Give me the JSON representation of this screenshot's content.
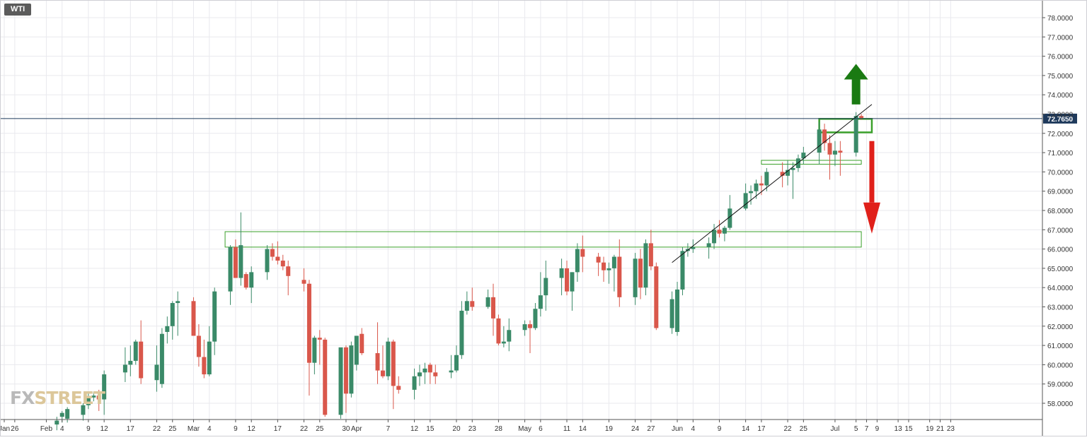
{
  "symbol": "WTI",
  "watermark": {
    "part1": "FX",
    "part2": "STREET"
  },
  "colors": {
    "up": "#3a8a68",
    "down": "#d9574b",
    "grid": "#e9e9ee",
    "axis": "#555555",
    "current_line": "#1f3a5c",
    "zone": "#3aa02a",
    "arrow_up": "#1a7a12",
    "arrow_down": "#e0201a"
  },
  "chart_data": {
    "type": "candlestick",
    "title": "",
    "xlabel": "",
    "ylabel": "",
    "ylim": [
      57.2,
      78.5
    ],
    "y_ticks": [
      "58.0000",
      "59.0000",
      "60.0000",
      "61.0000",
      "62.0000",
      "63.0000",
      "64.0000",
      "65.0000",
      "66.0000",
      "67.0000",
      "68.0000",
      "69.0000",
      "70.0000",
      "71.0000",
      "72.0000",
      "73.0000",
      "74.0000",
      "75.0000",
      "76.0000",
      "77.0000",
      "78.0000"
    ],
    "x_ticks": [
      {
        "label": "Jan",
        "date": "2021-01-24"
      },
      {
        "label": "26",
        "date": "2021-01-26"
      },
      {
        "label": "Feb",
        "date": "2021-02-01"
      },
      {
        "label": "4",
        "date": "2021-02-04"
      },
      {
        "label": "9",
        "date": "2021-02-09"
      },
      {
        "label": "12",
        "date": "2021-02-12"
      },
      {
        "label": "17",
        "date": "2021-02-17"
      },
      {
        "label": "22",
        "date": "2021-02-22"
      },
      {
        "label": "25",
        "date": "2021-02-25"
      },
      {
        "label": "Mar",
        "date": "2021-03-01"
      },
      {
        "label": "4",
        "date": "2021-03-04"
      },
      {
        "label": "9",
        "date": "2021-03-09"
      },
      {
        "label": "12",
        "date": "2021-03-12"
      },
      {
        "label": "17",
        "date": "2021-03-17"
      },
      {
        "label": "22",
        "date": "2021-03-22"
      },
      {
        "label": "25",
        "date": "2021-03-25"
      },
      {
        "label": "30",
        "date": "2021-03-30"
      },
      {
        "label": "Apr",
        "date": "2021-04-01"
      },
      {
        "label": "7",
        "date": "2021-04-07"
      },
      {
        "label": "12",
        "date": "2021-04-12"
      },
      {
        "label": "15",
        "date": "2021-04-15"
      },
      {
        "label": "20",
        "date": "2021-04-20"
      },
      {
        "label": "23",
        "date": "2021-04-23"
      },
      {
        "label": "28",
        "date": "2021-04-28"
      },
      {
        "label": "May",
        "date": "2021-05-03"
      },
      {
        "label": "6",
        "date": "2021-05-06"
      },
      {
        "label": "11",
        "date": "2021-05-11"
      },
      {
        "label": "14",
        "date": "2021-05-14"
      },
      {
        "label": "19",
        "date": "2021-05-19"
      },
      {
        "label": "24",
        "date": "2021-05-24"
      },
      {
        "label": "27",
        "date": "2021-05-27"
      },
      {
        "label": "Jun",
        "date": "2021-06-01"
      },
      {
        "label": "4",
        "date": "2021-06-04"
      },
      {
        "label": "9",
        "date": "2021-06-09"
      },
      {
        "label": "14",
        "date": "2021-06-14"
      },
      {
        "label": "17",
        "date": "2021-06-17"
      },
      {
        "label": "22",
        "date": "2021-06-22"
      },
      {
        "label": "25",
        "date": "2021-06-25"
      },
      {
        "label": "Jul",
        "date": "2021-07-01"
      },
      {
        "label": "5",
        "date": "2021-07-05"
      },
      {
        "label": "7",
        "date": "2021-07-07"
      },
      {
        "label": "9",
        "date": "2021-07-09"
      },
      {
        "label": "13",
        "date": "2021-07-13"
      },
      {
        "label": "15",
        "date": "2021-07-15"
      },
      {
        "label": "19",
        "date": "2021-07-19"
      },
      {
        "label": "21",
        "date": "2021-07-21"
      },
      {
        "label": "23",
        "date": "2021-07-23"
      }
    ],
    "candles": [
      {
        "date": "2021-02-03",
        "o": 56.9,
        "h": 57.3,
        "l": 56.6,
        "c": 57.1
      },
      {
        "date": "2021-02-04",
        "o": 57.3,
        "h": 57.6,
        "l": 57.0,
        "c": 57.5
      },
      {
        "date": "2021-02-05",
        "o": 57.2,
        "h": 57.8,
        "l": 57.0,
        "c": 57.7
      },
      {
        "date": "2021-02-08",
        "o": 57.4,
        "h": 58.0,
        "l": 57.1,
        "c": 57.9
      },
      {
        "date": "2021-02-09",
        "o": 57.9,
        "h": 58.6,
        "l": 57.7,
        "c": 58.3
      },
      {
        "date": "2021-02-10",
        "o": 58.3,
        "h": 58.6,
        "l": 58.1,
        "c": 58.4
      },
      {
        "date": "2021-02-11",
        "o": 58.4,
        "h": 58.7,
        "l": 57.6,
        "c": 58.2
      },
      {
        "date": "2021-02-12",
        "o": 58.2,
        "h": 59.7,
        "l": 57.4,
        "c": 59.5
      },
      {
        "date": "2021-02-16",
        "o": 59.6,
        "h": 60.9,
        "l": 59.1,
        "c": 60.0
      },
      {
        "date": "2021-02-17",
        "o": 60.0,
        "h": 61.0,
        "l": 59.4,
        "c": 60.2
      },
      {
        "date": "2021-02-18",
        "o": 60.2,
        "h": 61.3,
        "l": 60.0,
        "c": 61.2
      },
      {
        "date": "2021-02-19",
        "o": 61.2,
        "h": 62.3,
        "l": 59.0,
        "c": 59.3
      },
      {
        "date": "2021-02-22",
        "o": 59.2,
        "h": 61.0,
        "l": 58.6,
        "c": 60.0
      },
      {
        "date": "2021-02-23",
        "o": 59.0,
        "h": 61.9,
        "l": 58.8,
        "c": 61.6
      },
      {
        "date": "2021-02-24",
        "o": 61.7,
        "h": 62.5,
        "l": 61.1,
        "c": 62.0
      },
      {
        "date": "2021-02-25",
        "o": 62.0,
        "h": 63.3,
        "l": 61.3,
        "c": 63.2
      },
      {
        "date": "2021-02-26",
        "o": 63.2,
        "h": 63.8,
        "l": 61.5,
        "c": 63.3
      },
      {
        "date": "2021-03-01",
        "o": 63.3,
        "h": 63.5,
        "l": 61.6,
        "c": 61.5
      },
      {
        "date": "2021-03-02",
        "o": 61.5,
        "h": 62.1,
        "l": 59.9,
        "c": 60.4
      },
      {
        "date": "2021-03-03",
        "o": 60.4,
        "h": 61.3,
        "l": 59.3,
        "c": 59.5
      },
      {
        "date": "2021-03-04",
        "o": 59.5,
        "h": 62.0,
        "l": 59.4,
        "c": 61.2
      },
      {
        "date": "2021-03-05",
        "o": 61.2,
        "h": 64.0,
        "l": 60.5,
        "c": 63.8
      },
      {
        "date": "2021-03-08",
        "o": 63.8,
        "h": 66.2,
        "l": 63.1,
        "c": 66.1
      },
      {
        "date": "2021-03-09",
        "o": 66.1,
        "h": 66.5,
        "l": 64.5,
        "c": 64.5
      },
      {
        "date": "2021-03-10",
        "o": 64.5,
        "h": 67.9,
        "l": 64.1,
        "c": 66.2
      },
      {
        "date": "2021-03-11",
        "o": 64.7,
        "h": 64.8,
        "l": 63.9,
        "c": 64.0
      },
      {
        "date": "2021-03-12",
        "o": 64.0,
        "h": 65.1,
        "l": 63.2,
        "c": 64.8
      },
      {
        "date": "2021-03-15",
        "o": 64.8,
        "h": 66.2,
        "l": 64.4,
        "c": 66.0
      },
      {
        "date": "2021-03-16",
        "o": 66.0,
        "h": 66.3,
        "l": 65.4,
        "c": 65.6
      },
      {
        "date": "2021-03-17",
        "o": 65.6,
        "h": 66.4,
        "l": 65.2,
        "c": 65.4
      },
      {
        "date": "2021-03-18",
        "o": 65.4,
        "h": 65.7,
        "l": 64.9,
        "c": 65.1
      },
      {
        "date": "2021-03-19",
        "o": 65.1,
        "h": 65.4,
        "l": 63.6,
        "c": 64.6
      },
      {
        "date": "2021-03-22",
        "o": 64.4,
        "h": 65.0,
        "l": 63.8,
        "c": 64.2
      },
      {
        "date": "2021-03-23",
        "o": 64.2,
        "h": 64.4,
        "l": 58.4,
        "c": 60.1
      },
      {
        "date": "2021-03-24",
        "o": 60.1,
        "h": 61.5,
        "l": 59.5,
        "c": 61.4
      },
      {
        "date": "2021-03-25",
        "o": 61.4,
        "h": 61.8,
        "l": 60.0,
        "c": 61.3
      },
      {
        "date": "2021-03-26",
        "o": 61.3,
        "h": 61.4,
        "l": 57.3,
        "c": 57.4
      },
      {
        "date": "2021-03-29",
        "o": 57.4,
        "h": 60.8,
        "l": 57.2,
        "c": 60.9
      },
      {
        "date": "2021-03-30",
        "o": 60.9,
        "h": 61.0,
        "l": 57.5,
        "c": 58.5
      },
      {
        "date": "2021-03-31",
        "o": 58.5,
        "h": 61.2,
        "l": 58.3,
        "c": 61.0
      },
      {
        "date": "2021-04-01",
        "o": 60.0,
        "h": 61.4,
        "l": 59.7,
        "c": 61.5
      },
      {
        "date": "2021-04-02",
        "o": 61.6,
        "h": 61.9,
        "l": 60.5,
        "c": 60.6
      },
      {
        "date": "2021-04-05",
        "o": 60.6,
        "h": 62.2,
        "l": 59.0,
        "c": 59.7
      },
      {
        "date": "2021-04-06",
        "o": 59.7,
        "h": 61.0,
        "l": 59.3,
        "c": 59.4
      },
      {
        "date": "2021-04-07",
        "o": 59.4,
        "h": 61.4,
        "l": 59.2,
        "c": 61.2
      },
      {
        "date": "2021-04-08",
        "o": 61.2,
        "h": 61.3,
        "l": 57.7,
        "c": 58.9
      },
      {
        "date": "2021-04-09",
        "o": 58.9,
        "h": 59.4,
        "l": 58.5,
        "c": 58.7
      },
      {
        "date": "2021-04-12",
        "o": 58.7,
        "h": 59.8,
        "l": 58.2,
        "c": 59.4
      },
      {
        "date": "2021-04-13",
        "o": 59.4,
        "h": 60.0,
        "l": 58.9,
        "c": 59.6
      },
      {
        "date": "2021-04-14",
        "o": 59.6,
        "h": 60.1,
        "l": 59.0,
        "c": 59.8
      },
      {
        "date": "2021-04-15",
        "o": 60.0,
        "h": 60.1,
        "l": 59.0,
        "c": 59.6
      },
      {
        "date": "2021-04-16",
        "o": 59.6,
        "h": 60.0,
        "l": 59.0,
        "c": 59.4
      },
      {
        "date": "2021-04-19",
        "o": 59.6,
        "h": 60.5,
        "l": 59.3,
        "c": 59.7
      },
      {
        "date": "2021-04-20",
        "o": 59.7,
        "h": 61.0,
        "l": 59.6,
        "c": 60.5
      },
      {
        "date": "2021-04-21",
        "o": 60.5,
        "h": 63.3,
        "l": 60.3,
        "c": 62.8
      },
      {
        "date": "2021-04-22",
        "o": 62.8,
        "h": 63.8,
        "l": 62.6,
        "c": 63.3
      },
      {
        "date": "2021-04-23",
        "o": 63.3,
        "h": 64.0,
        "l": 62.8,
        "c": 63.0
      },
      {
        "date": "2021-04-26",
        "o": 63.0,
        "h": 63.9,
        "l": 62.9,
        "c": 63.5
      },
      {
        "date": "2021-04-27",
        "o": 63.5,
        "h": 64.2,
        "l": 61.5,
        "c": 62.4
      },
      {
        "date": "2021-04-28",
        "o": 62.4,
        "h": 62.6,
        "l": 61.0,
        "c": 61.1
      },
      {
        "date": "2021-04-29",
        "o": 61.1,
        "h": 62.0,
        "l": 60.9,
        "c": 61.2
      },
      {
        "date": "2021-04-30",
        "o": 61.2,
        "h": 62.4,
        "l": 60.7,
        "c": 61.8
      },
      {
        "date": "2021-05-03",
        "o": 61.8,
        "h": 62.3,
        "l": 61.5,
        "c": 62.1
      },
      {
        "date": "2021-05-04",
        "o": 62.1,
        "h": 62.3,
        "l": 60.6,
        "c": 61.9
      },
      {
        "date": "2021-05-05",
        "o": 61.9,
        "h": 63.2,
        "l": 61.8,
        "c": 62.9
      },
      {
        "date": "2021-05-06",
        "o": 62.9,
        "h": 64.8,
        "l": 62.5,
        "c": 63.6
      },
      {
        "date": "2021-05-07",
        "o": 63.6,
        "h": 65.4,
        "l": 62.8,
        "c": 64.5
      },
      {
        "date": "2021-05-10",
        "o": 64.5,
        "h": 65.5,
        "l": 63.6,
        "c": 65.0
      },
      {
        "date": "2021-05-11",
        "o": 65.0,
        "h": 65.4,
        "l": 63.6,
        "c": 63.8
      },
      {
        "date": "2021-05-12",
        "o": 63.8,
        "h": 64.8,
        "l": 62.8,
        "c": 64.8
      },
      {
        "date": "2021-05-13",
        "o": 64.8,
        "h": 66.3,
        "l": 64.3,
        "c": 66.0
      },
      {
        "date": "2021-05-14",
        "o": 66.0,
        "h": 66.7,
        "l": 64.8,
        "c": 65.6
      },
      {
        "date": "2021-05-17",
        "o": 65.6,
        "h": 65.8,
        "l": 64.6,
        "c": 65.3
      },
      {
        "date": "2021-05-18",
        "o": 65.3,
        "h": 65.6,
        "l": 64.3,
        "c": 64.9
      },
      {
        "date": "2021-05-19",
        "o": 64.9,
        "h": 65.3,
        "l": 64.2,
        "c": 65.0
      },
      {
        "date": "2021-05-20",
        "o": 65.0,
        "h": 65.7,
        "l": 63.8,
        "c": 65.6
      },
      {
        "date": "2021-05-21",
        "o": 65.6,
        "h": 66.5,
        "l": 63.0,
        "c": 63.5
      },
      {
        "date": "2021-05-24",
        "o": 63.5,
        "h": 65.8,
        "l": 63.1,
        "c": 65.5
      },
      {
        "date": "2021-05-25",
        "o": 65.5,
        "h": 66.0,
        "l": 63.4,
        "c": 64.0
      },
      {
        "date": "2021-05-26",
        "o": 64.0,
        "h": 66.5,
        "l": 63.6,
        "c": 66.3
      },
      {
        "date": "2021-05-27",
        "o": 66.3,
        "h": 67.0,
        "l": 64.9,
        "c": 65.1
      },
      {
        "date": "2021-05-28",
        "o": 65.1,
        "h": 65.3,
        "l": 61.8,
        "c": 61.9
      },
      {
        "date": "2021-05-31",
        "o": 61.9,
        "h": 63.8,
        "l": 61.6,
        "c": 63.4
      },
      {
        "date": "2021-06-01",
        "o": 61.7,
        "h": 64.3,
        "l": 61.5,
        "c": 63.9
      },
      {
        "date": "2021-06-02",
        "o": 63.9,
        "h": 66.1,
        "l": 63.6,
        "c": 65.9
      },
      {
        "date": "2021-06-03",
        "o": 65.9,
        "h": 66.3,
        "l": 65.6,
        "c": 66.0
      },
      {
        "date": "2021-06-04",
        "o": 66.0,
        "h": 66.5,
        "l": 65.8,
        "c": 66.1
      },
      {
        "date": "2021-06-07",
        "o": 66.1,
        "h": 66.6,
        "l": 65.5,
        "c": 66.3
      },
      {
        "date": "2021-06-08",
        "o": 66.3,
        "h": 67.3,
        "l": 66.0,
        "c": 67.0
      },
      {
        "date": "2021-06-09",
        "o": 67.0,
        "h": 67.5,
        "l": 66.6,
        "c": 66.8
      },
      {
        "date": "2021-06-10",
        "o": 66.8,
        "h": 67.2,
        "l": 66.4,
        "c": 67.1
      },
      {
        "date": "2021-06-11",
        "o": 67.1,
        "h": 68.8,
        "l": 67.0,
        "c": 68.1
      },
      {
        "date": "2021-06-14",
        "o": 68.1,
        "h": 69.4,
        "l": 68.0,
        "c": 68.9
      },
      {
        "date": "2021-06-15",
        "o": 68.9,
        "h": 69.3,
        "l": 68.3,
        "c": 69.0
      },
      {
        "date": "2021-06-16",
        "o": 69.0,
        "h": 69.6,
        "l": 68.6,
        "c": 69.4
      },
      {
        "date": "2021-06-17",
        "o": 69.4,
        "h": 69.8,
        "l": 68.8,
        "c": 69.3
      },
      {
        "date": "2021-06-18",
        "o": 69.3,
        "h": 70.2,
        "l": 69.0,
        "c": 70.0
      },
      {
        "date": "2021-06-21",
        "o": 70.0,
        "h": 70.5,
        "l": 69.2,
        "c": 69.8
      },
      {
        "date": "2021-06-22",
        "o": 69.8,
        "h": 70.6,
        "l": 69.3,
        "c": 70.1
      },
      {
        "date": "2021-06-23",
        "o": 70.1,
        "h": 70.5,
        "l": 68.6,
        "c": 70.2
      },
      {
        "date": "2021-06-24",
        "o": 70.2,
        "h": 70.9,
        "l": 70.0,
        "c": 70.7
      },
      {
        "date": "2021-06-25",
        "o": 70.7,
        "h": 71.3,
        "l": 70.4,
        "c": 71.0
      },
      {
        "date": "2021-06-28",
        "o": 71.0,
        "h": 72.6,
        "l": 70.4,
        "c": 72.2
      },
      {
        "date": "2021-06-29",
        "o": 72.2,
        "h": 72.5,
        "l": 71.1,
        "c": 71.5
      },
      {
        "date": "2021-06-30",
        "o": 71.5,
        "h": 71.9,
        "l": 69.6,
        "c": 70.9
      },
      {
        "date": "2021-07-01",
        "o": 70.9,
        "h": 71.6,
        "l": 70.3,
        "c": 71.1
      },
      {
        "date": "2021-07-02",
        "o": 71.1,
        "h": 71.6,
        "l": 69.8,
        "c": 71.0
      },
      {
        "date": "2021-07-05",
        "o": 71.0,
        "h": 73.1,
        "l": 70.8,
        "c": 72.9
      },
      {
        "date": "2021-07-06",
        "o": 72.9,
        "h": 73.0,
        "l": 72.7,
        "c": 72.8
      }
    ],
    "current_price": 72.765,
    "current_price_label": "72.7650",
    "annotations": [
      {
        "type": "zone",
        "name": "support-zone-66-67",
        "from_date": "2021-03-07",
        "to_date": "2021-07-06",
        "y_low": 66.1,
        "y_high": 66.9
      },
      {
        "type": "zone",
        "name": "support-zone-70-5",
        "from_date": "2021-06-17",
        "to_date": "2021-07-06",
        "y_low": 70.4,
        "y_high": 70.6
      },
      {
        "type": "zone",
        "name": "resistance-zone-72-5",
        "from_date": "2021-06-28",
        "to_date": "2021-07-08",
        "y_low": 72.05,
        "y_high": 72.75
      },
      {
        "type": "trendline",
        "name": "rising-trendline",
        "x1": "2021-05-31",
        "y1": 65.3,
        "x2": "2021-07-08",
        "y2": 73.5
      },
      {
        "type": "arrow-up",
        "name": "bullish-arrow",
        "date": "2021-07-05",
        "y_from": 73.5,
        "y_to": 75.6
      },
      {
        "type": "arrow-down",
        "name": "bearish-arrow",
        "date": "2021-07-08",
        "y_from": 71.6,
        "y_to": 66.8
      }
    ]
  }
}
